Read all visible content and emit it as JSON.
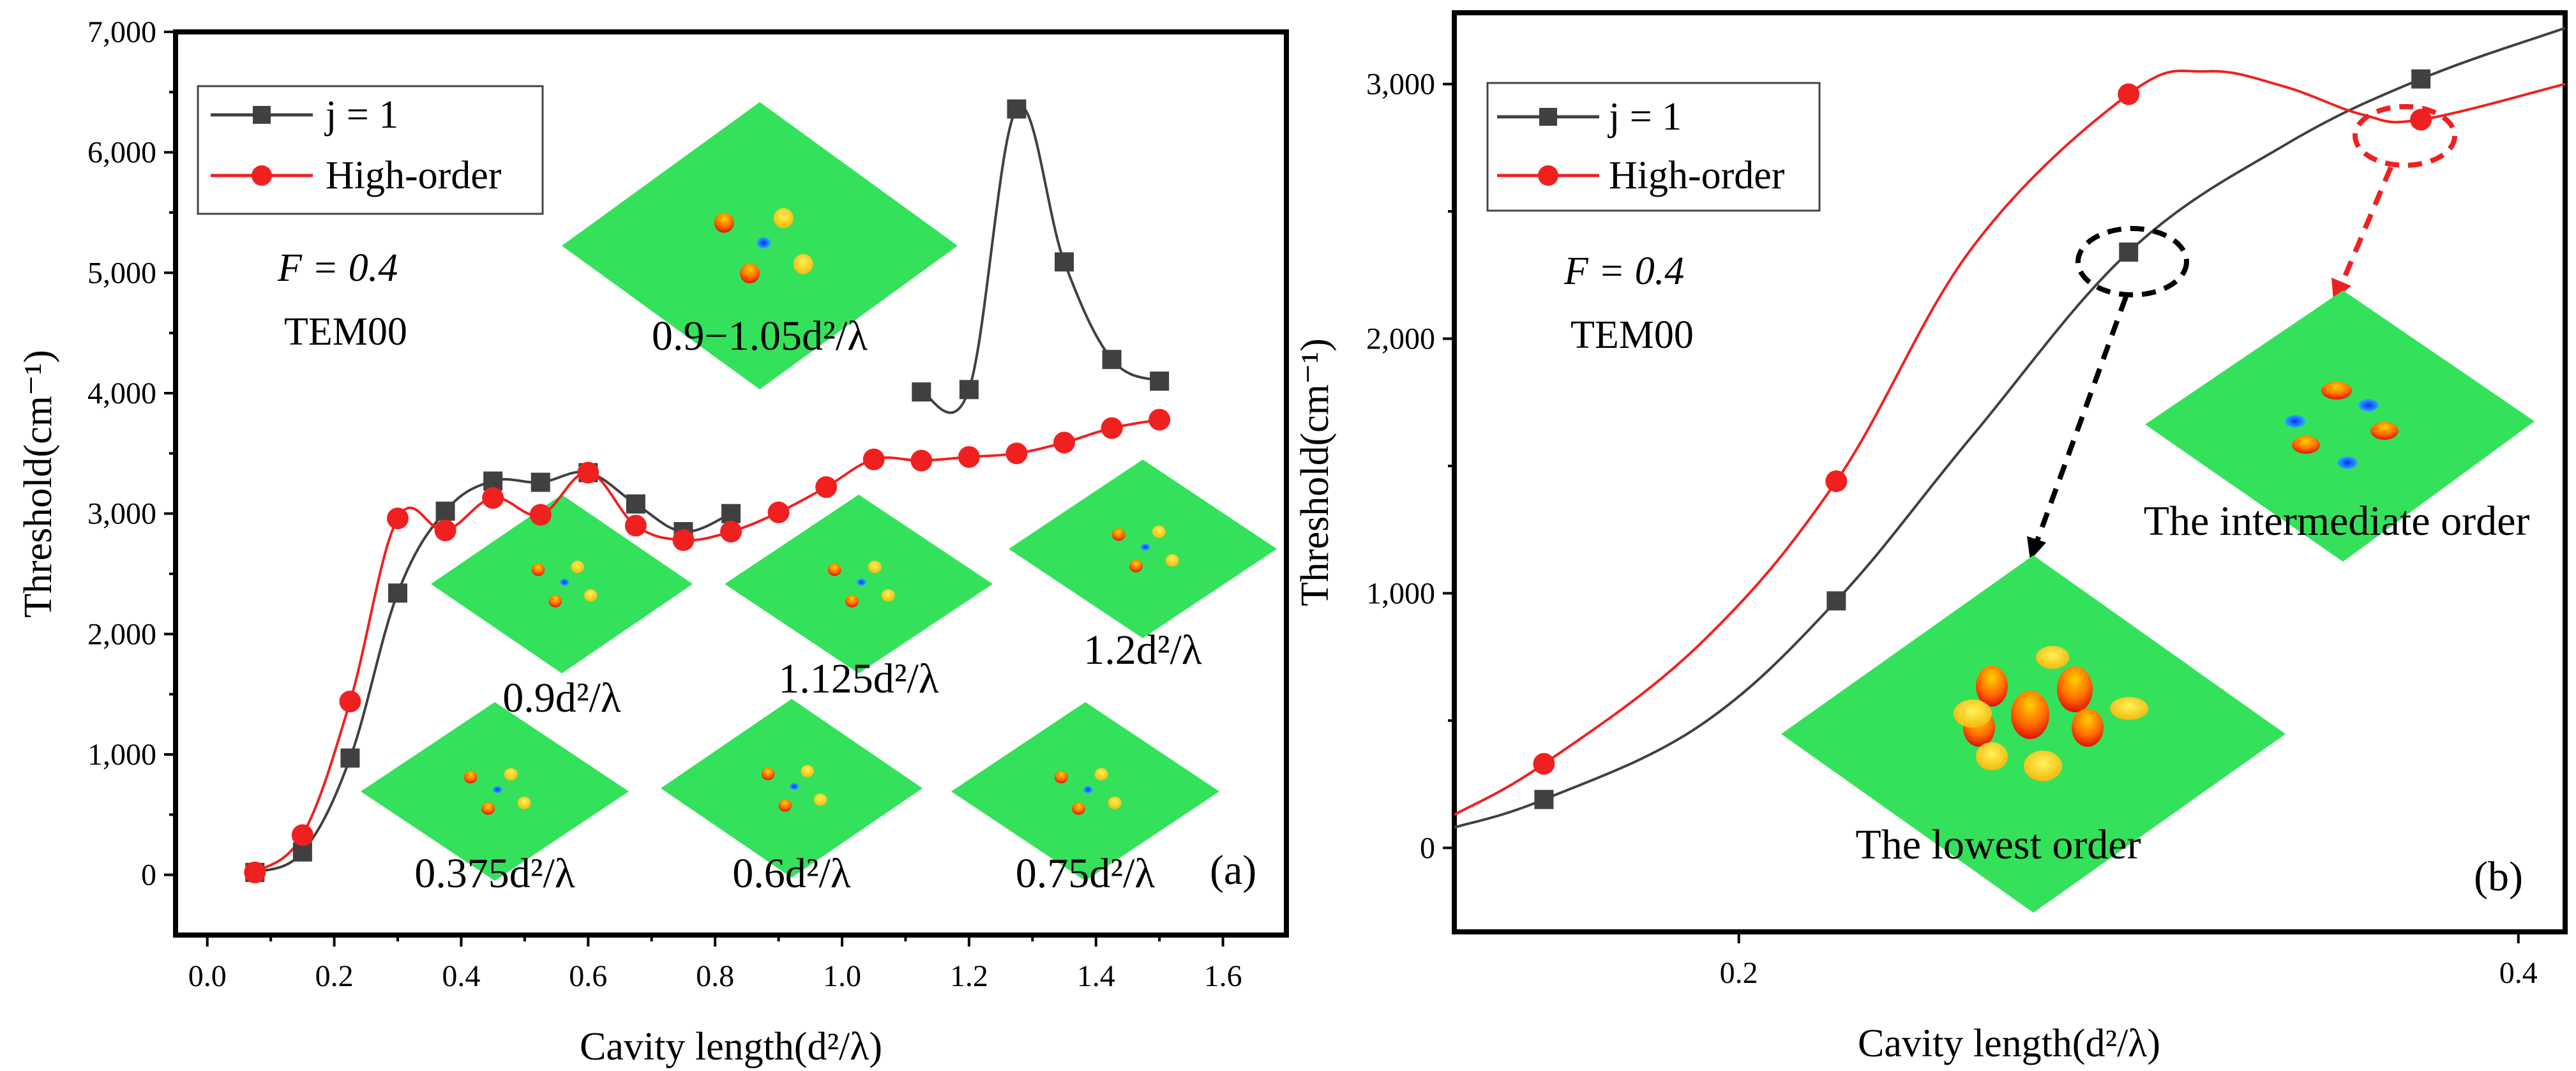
{
  "chart_data": [
    {
      "panel": "a",
      "type": "line",
      "panel_label": "(a)",
      "xlabel": "Cavity length(d²/λ)",
      "ylabel": "Threshold(cm⁻¹)",
      "xlim": [
        -0.05,
        1.7
      ],
      "ylim": [
        -500,
        7000
      ],
      "xticks": [
        0.0,
        0.2,
        0.4,
        0.6,
        0.8,
        1.0,
        1.2,
        1.4,
        1.6
      ],
      "xtick_labels": [
        "0.0",
        "0.2",
        "0.4",
        "0.6",
        "0.8",
        "1.0",
        "1.2",
        "1.4",
        "1.6"
      ],
      "yticks": [
        0,
        1000,
        2000,
        3000,
        4000,
        5000,
        6000,
        7000
      ],
      "ytick_labels": [
        "0",
        "1,000",
        "2,000",
        "3,000",
        "4,000",
        "5,000",
        "6,000",
        "7,000"
      ],
      "legend": [
        "j = 1",
        "High-order"
      ],
      "annotation_lines": [
        "F = 0.4",
        "TEM00"
      ],
      "inset_labels": [
        "0.9−1.05d²/λ",
        "0.9d²/λ",
        "1.125d²/λ",
        "1.2d²/λ",
        "0.375d²/λ",
        "0.6d²/λ",
        "0.75d²/λ"
      ],
      "series": [
        {
          "name": "j = 1",
          "color": "#404040",
          "marker": "square",
          "segments": [
            {
              "x": [
                0.075,
                0.15,
                0.225,
                0.3,
                0.375,
                0.45,
                0.525,
                0.6,
                0.675,
                0.75,
                0.825
              ],
              "y": [
                20,
                190,
                970,
                2340,
                3020,
                3270,
                3260,
                3340,
                3080,
                2850,
                3000
              ]
            },
            {
              "x": [
                1.125,
                1.2,
                1.275,
                1.35,
                1.425,
                1.5
              ],
              "y": [
                4010,
                4030,
                6360,
                5090,
                4280,
                4100
              ]
            }
          ]
        },
        {
          "name": "High-order",
          "color": "#f02020",
          "marker": "circle",
          "segments": [
            {
              "x": [
                0.075,
                0.15,
                0.225,
                0.3,
                0.375,
                0.45,
                0.525,
                0.6,
                0.675,
                0.75,
                0.825,
                0.9,
                0.975,
                1.05,
                1.125,
                1.2,
                1.275,
                1.35,
                1.425,
                1.5
              ],
              "y": [
                20,
                330,
                1440,
                2960,
                2860,
                3130,
                2990,
                3340,
                2900,
                2780,
                2850,
                3010,
                3220,
                3450,
                3440,
                3470,
                3500,
                3590,
                3710,
                3780
              ]
            }
          ]
        }
      ]
    },
    {
      "panel": "b",
      "type": "line",
      "panel_label": "(b)",
      "xlabel": "Cavity length(d²/λ)",
      "ylabel": "Threshold(cm⁻¹)",
      "xlim": [
        0.127,
        0.412
      ],
      "ylim": [
        -330,
        3280
      ],
      "xticks": [
        0.2,
        0.4
      ],
      "xtick_labels": [
        "0.2",
        "0.4"
      ],
      "yticks": [
        0,
        1000,
        2000,
        3000
      ],
      "ytick_labels": [
        "0",
        "1,000",
        "2,000",
        "3,000"
      ],
      "legend": [
        "j = 1",
        "High-order"
      ],
      "annotation_lines": [
        "F = 0.4",
        "TEM00"
      ],
      "annotations": [
        "The intermediate order",
        "The lowest order"
      ],
      "series": [
        {
          "name": "j = 1",
          "color": "#404040",
          "marker": "square",
          "x": [
            0.15,
            0.225,
            0.3,
            0.375
          ],
          "y": [
            190,
            970,
            2340,
            3020
          ],
          "curve": {
            "x": [
              0.127,
              0.15,
              0.19,
              0.225,
              0.26,
              0.3,
              0.34,
              0.375,
              0.412
            ],
            "y": [
              80,
              190,
              480,
              970,
              1620,
              2340,
              2760,
              3020,
              3220
            ]
          }
        },
        {
          "name": "High-order",
          "color": "#f02020",
          "marker": "circle",
          "x": [
            0.15,
            0.225,
            0.3,
            0.375
          ],
          "y": [
            330,
            1440,
            2960,
            2860
          ],
          "curve": {
            "x": [
              0.127,
              0.15,
              0.19,
              0.225,
              0.26,
              0.3,
              0.32,
              0.34,
              0.36,
              0.375,
              0.412
            ],
            "y": [
              130,
              330,
              800,
              1440,
              2360,
              2960,
              3050,
              2990,
              2880,
              2860,
              3000
            ]
          }
        }
      ]
    }
  ]
}
